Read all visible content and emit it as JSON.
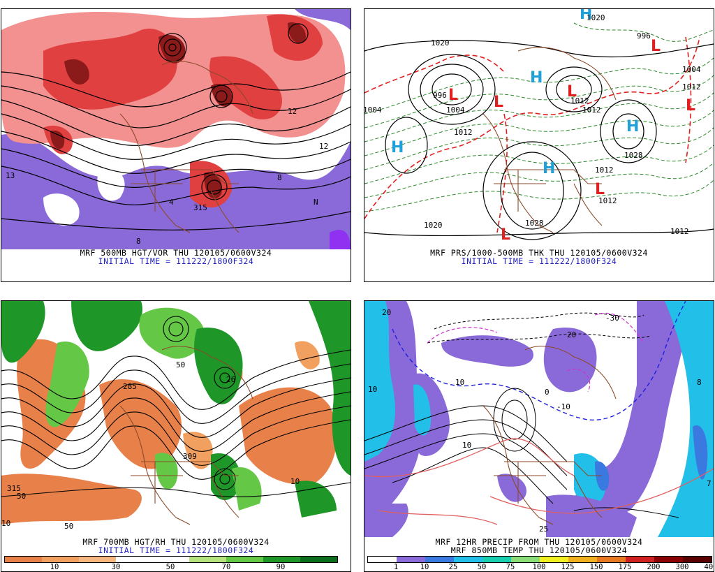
{
  "panels": {
    "p1": {
      "caption1": "MRF 500MB HGT/VOR THU 120105/0600V324",
      "caption2": "INITIAL TIME = 111222/1800F324",
      "contour_labels": [
        "12",
        "8",
        "4",
        "12",
        "N",
        "8",
        "315",
        "13"
      ],
      "fill_colors": {
        "positive_light": "#f39090",
        "positive_mid": "#e04040",
        "positive_dark": "#8b1a1a",
        "negative": "#8a6ad8",
        "negative_dark": "#9030f0"
      }
    },
    "p2": {
      "caption1": "MRF PRS/1000-500MB THK THU 120105/0600V324",
      "caption2": "INITIAL TIME = 111222/1800F324",
      "centers": [
        {
          "type": "L",
          "color": "#e02020"
        },
        {
          "type": "L",
          "color": "#e02020"
        },
        {
          "type": "L",
          "color": "#e02020"
        },
        {
          "type": "L",
          "color": "#e02020"
        },
        {
          "type": "L",
          "color": "#e02020"
        },
        {
          "type": "L",
          "color": "#e02020"
        },
        {
          "type": "L",
          "color": "#e02020"
        },
        {
          "type": "L",
          "color": "#e02020"
        },
        {
          "type": "H",
          "color": "#20a0d8"
        },
        {
          "type": "H",
          "color": "#20a0d8"
        },
        {
          "type": "H",
          "color": "#20a0d8"
        },
        {
          "type": "H",
          "color": "#20a0d8"
        },
        {
          "type": "H",
          "color": "#20a0d8"
        }
      ],
      "isobar_labels": [
        "1020",
        "1004",
        "996",
        "1004",
        "1012",
        "1012",
        "1012",
        "1020",
        "1028",
        "1028",
        "1012",
        "1012",
        "1020",
        "1012",
        "1020",
        "1012",
        "996",
        "1004",
        "1012"
      ]
    },
    "p3": {
      "caption1": "MRF 700MB HGT/RH THU 120105/0600V324",
      "caption2": "INITIAL TIME = 111222/1800F324",
      "contour_labels": [
        "315",
        "50",
        "50",
        "10",
        "10",
        "285",
        "26",
        "309",
        "10",
        "50"
      ],
      "colorbar": {
        "colors": [
          "#e8804a",
          "#f2a060",
          "#f6b880",
          "#ffffff",
          "#ffffff",
          "#b4e27c",
          "#64c846",
          "#1e9628",
          "#0c6e1a"
        ],
        "labels": [
          "10",
          "30",
          "50",
          "70",
          "90"
        ]
      }
    },
    "p4": {
      "caption1": "MRF 12HR PRECIP FROM THU 120105/0600V324",
      "caption2": "MRF 850MB TEMP THU 120105/0600V324",
      "contour_labels": [
        "20",
        "10",
        "10",
        "0",
        "10",
        "-10",
        "-30",
        "8",
        "7",
        "20",
        "25"
      ],
      "colorbar": {
        "colors": [
          "#ffffff",
          "#8a6ad8",
          "#3a7ae0",
          "#22c0e8",
          "#18d0b0",
          "#8ade7a",
          "#f0f020",
          "#f0b020",
          "#e87820",
          "#d02020",
          "#8b0000",
          "#5a0000"
        ],
        "labels": [
          "1",
          "10",
          "25",
          "50",
          "75",
          "100",
          "125",
          "150",
          "175",
          "200",
          "300",
          "400"
        ]
      }
    }
  }
}
